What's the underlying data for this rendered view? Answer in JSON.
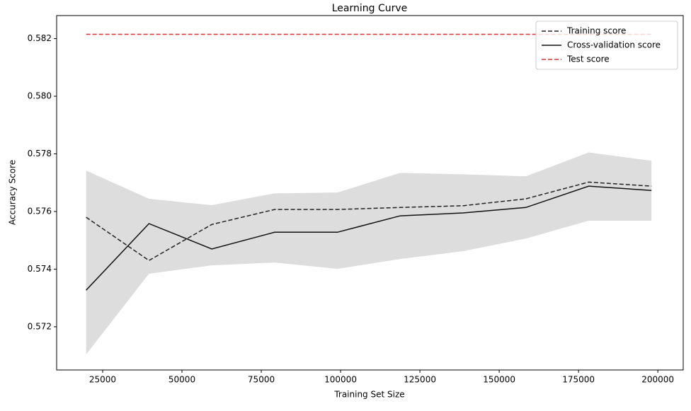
{
  "chart_data": {
    "type": "line",
    "title": "Learning Curve",
    "xlabel": "Training Set Size",
    "ylabel": "Accuracy Score",
    "x": [
      19800,
      39600,
      59400,
      79200,
      99000,
      118800,
      138600,
      158400,
      178200,
      198000
    ],
    "series": [
      {
        "name": "Training score",
        "color": "#222222",
        "dash": true,
        "values": [
          0.5758,
          0.5743,
          0.57555,
          0.57607,
          0.57607,
          0.57614,
          0.5762,
          0.57644,
          0.57702,
          0.57688
        ]
      },
      {
        "name": "Cross-validation score",
        "color": "#111111",
        "dash": false,
        "values": [
          0.57327,
          0.57558,
          0.5747,
          0.57528,
          0.57528,
          0.57585,
          0.57595,
          0.57614,
          0.57688,
          0.57673
        ]
      },
      {
        "name": "Test score",
        "color": "#e03030",
        "dash": true,
        "values": [
          0.58215,
          0.58215,
          0.58215,
          0.58215,
          0.58215,
          0.58215,
          0.58215,
          0.58215,
          0.58215,
          0.58215
        ]
      }
    ],
    "band": {
      "color": "#dddddd",
      "upper": [
        0.57742,
        0.57644,
        0.57622,
        0.57663,
        0.57666,
        0.57734,
        0.57729,
        0.57722,
        0.57805,
        0.57776
      ],
      "lower": [
        0.57104,
        0.57384,
        0.57413,
        0.57423,
        0.57401,
        0.57435,
        0.57462,
        0.57506,
        0.57568,
        0.57568
      ]
    },
    "xlim": [
      10500,
      208000
    ],
    "ylim": [
      0.5705,
      0.5828
    ],
    "xticks": [
      25000,
      50000,
      75000,
      100000,
      125000,
      150000,
      175000,
      200000
    ],
    "yticks": [
      {
        "value": 0.572,
        "label": "0.572"
      },
      {
        "value": 0.574,
        "label": "0.574"
      },
      {
        "value": 0.576,
        "label": "0.576"
      },
      {
        "value": 0.578,
        "label": "0.578"
      },
      {
        "value": 0.58,
        "label": "0.580"
      },
      {
        "value": 0.582,
        "label": "0.582"
      }
    ],
    "legend": "upper right"
  }
}
